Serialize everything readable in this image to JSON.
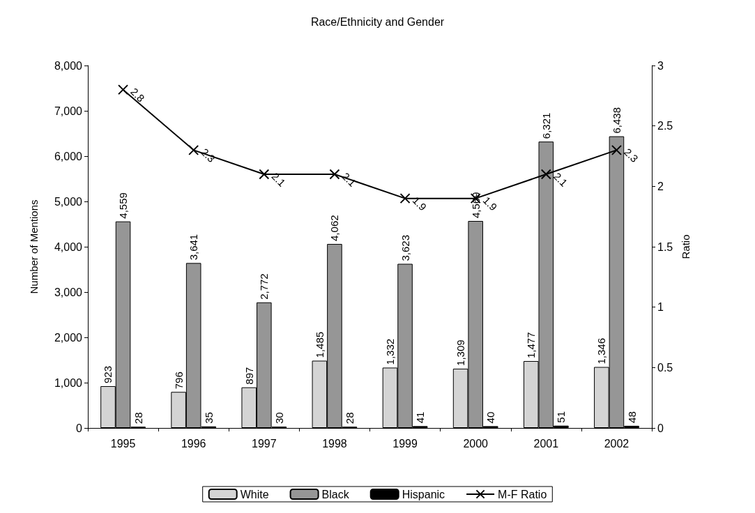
{
  "chart_data": {
    "type": "bar",
    "title": "Race/Ethnicity and Gender",
    "ylabel": "Number of Mentions",
    "y2label": "Ratio",
    "categories": [
      "1995",
      "1996",
      "1997",
      "1998",
      "1999",
      "2000",
      "2001",
      "2002"
    ],
    "series": [
      {
        "name": "White",
        "color": "#d4d4d4",
        "values": [
          923,
          796,
          897,
          1485,
          1332,
          1309,
          1477,
          1346
        ],
        "value_labels": [
          "923",
          "796",
          "897",
          "1,485",
          "1,332",
          "1,309",
          "1,477",
          "1,346"
        ]
      },
      {
        "name": "Black",
        "color": "#969696",
        "values": [
          4559,
          3641,
          2772,
          4062,
          3623,
          4569,
          6321,
          6438
        ],
        "value_labels": [
          "4,559",
          "3,641",
          "2,772",
          "4,062",
          "3,623",
          "4,569",
          "6,321",
          "6,438"
        ]
      },
      {
        "name": "Hispanic",
        "color": "#000000",
        "values": [
          28,
          35,
          30,
          28,
          41,
          40,
          51,
          48
        ]
      },
      {
        "name": "M-F Ratio",
        "type": "line",
        "axis": "y2",
        "color": "#000000",
        "marker": "cross",
        "values": [
          2.8,
          2.3,
          2.1,
          2.1,
          1.9,
          1.9,
          2.1,
          2.3
        ]
      }
    ],
    "ylim": [
      0,
      8000
    ],
    "yticks": [
      0,
      {
        "value": 1000,
        "label": "1,000"
      },
      {
        "value": 2000,
        "label": "2,000"
      },
      {
        "value": 3000,
        "label": "3,000"
      },
      {
        "value": 4000,
        "label": "4,000"
      },
      {
        "value": 5000,
        "label": "5,000"
      },
      {
        "value": 6000,
        "label": "6,000"
      },
      {
        "value": 7000,
        "label": "7,000"
      },
      {
        "value": 8000,
        "label": "8,000"
      }
    ],
    "y2lim": [
      0,
      3
    ],
    "y2ticks": [
      0,
      0.5,
      1,
      1.5,
      2,
      2.5,
      3
    ],
    "data_labels": true,
    "grid": false,
    "legend": "bottom"
  }
}
